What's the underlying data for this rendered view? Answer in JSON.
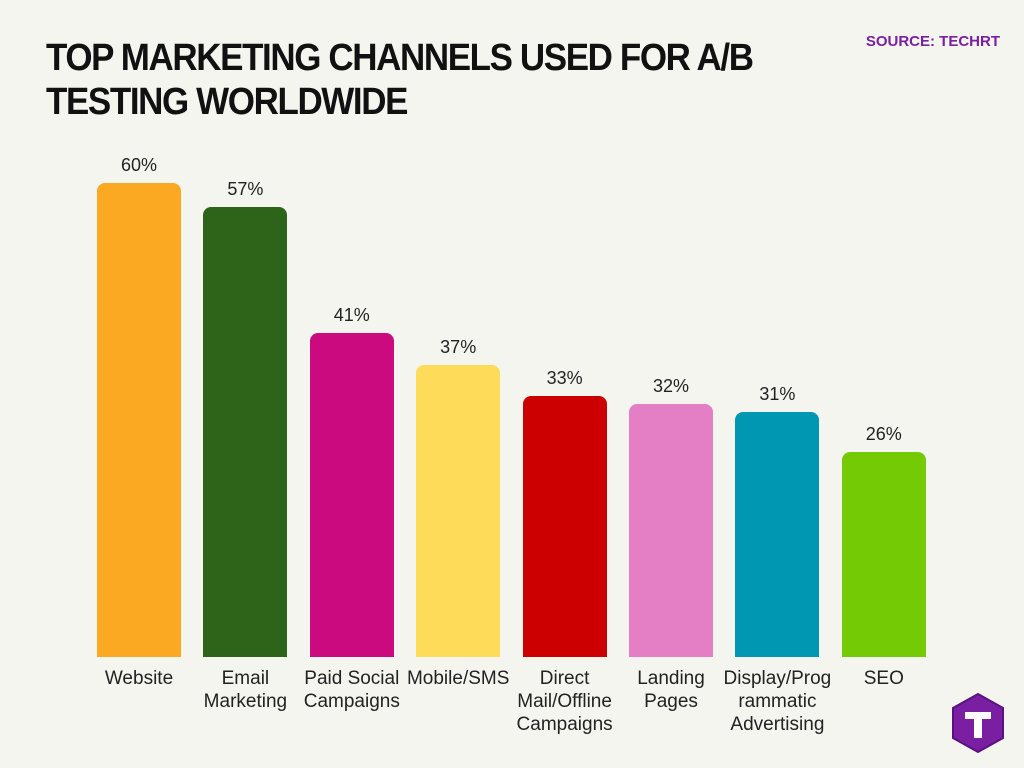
{
  "chart_data": {
    "type": "bar",
    "title": "TOP MARKETING CHANNELS USED FOR A/B TESTING WORLDWIDE",
    "source": "SOURCE: TECHRT",
    "categories": [
      "Website",
      "Email Marketing",
      "Paid Social Campaigns",
      "Mobile/SMS",
      "Direct Mail/Offline Campaigns",
      "Landing Pages",
      "Display/Programmatic Advertising",
      "SEO"
    ],
    "values": [
      60,
      57,
      41,
      37,
      33,
      32,
      31,
      26
    ],
    "value_labels": [
      "60%",
      "57%",
      "41%",
      "37%",
      "33%",
      "32%",
      "31%",
      "26%"
    ],
    "colors": [
      "#fba823",
      "#2e6419",
      "#cc0a80",
      "#fedc5a",
      "#cc0000",
      "#e57fc5",
      "#0097b2",
      "#74cb05"
    ]
  }
}
